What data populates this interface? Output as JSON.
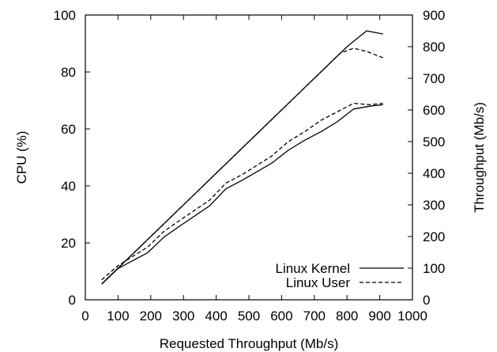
{
  "chart_data": {
    "type": "line",
    "title": "",
    "xlabel": "Requested Throughput (Mb/s)",
    "ylabel": "CPU (%)",
    "y2label": "Throughput (Mb/s)",
    "xlim": [
      0,
      1000
    ],
    "ylim": [
      0,
      100
    ],
    "y2lim": [
      0,
      900
    ],
    "xticks": [
      0,
      100,
      200,
      300,
      400,
      500,
      600,
      700,
      800,
      900,
      1000
    ],
    "yticks": [
      0,
      20,
      40,
      60,
      80,
      100
    ],
    "y2ticks": [
      0,
      100,
      200,
      300,
      400,
      500,
      600,
      700,
      800,
      900
    ],
    "grid": false,
    "legend_position": "bottom-right",
    "series": [
      {
        "name": "Linux Kernel",
        "style": "solid",
        "axis": "y2",
        "x": [
          50,
          100,
          200,
          300,
          400,
          500,
          600,
          700,
          800,
          860,
          910
        ],
        "y": [
          50,
          100,
          200,
          300,
          400,
          500,
          600,
          700,
          800,
          850,
          840
        ]
      },
      {
        "name": "Linux User",
        "style": "dashed",
        "axis": "y2",
        "x": [
          50,
          100,
          200,
          300,
          400,
          500,
          600,
          700,
          780,
          820,
          860,
          910
        ],
        "y": [
          50,
          100,
          200,
          300,
          400,
          500,
          600,
          700,
          780,
          795,
          785,
          765
        ]
      },
      {
        "name": "",
        "style": "solid",
        "axis": "y",
        "x": [
          50,
          100,
          190,
          240,
          290,
          380,
          430,
          480,
          570,
          620,
          670,
          720,
          770,
          820,
          870,
          910
        ],
        "y": [
          5.5,
          11,
          16.5,
          22,
          26,
          33,
          39,
          42,
          48,
          52.5,
          56,
          59,
          62.5,
          67,
          68,
          68.5
        ]
      },
      {
        "name": "",
        "style": "dashed",
        "axis": "y",
        "x": [
          50,
          100,
          190,
          240,
          290,
          380,
          430,
          480,
          570,
          620,
          670,
          720,
          770,
          820,
          870,
          910
        ],
        "y": [
          7,
          12,
          18.5,
          24,
          28,
          35,
          41,
          44,
          50.5,
          55.5,
          59,
          63,
          66,
          69,
          68.5,
          69
        ]
      }
    ]
  }
}
